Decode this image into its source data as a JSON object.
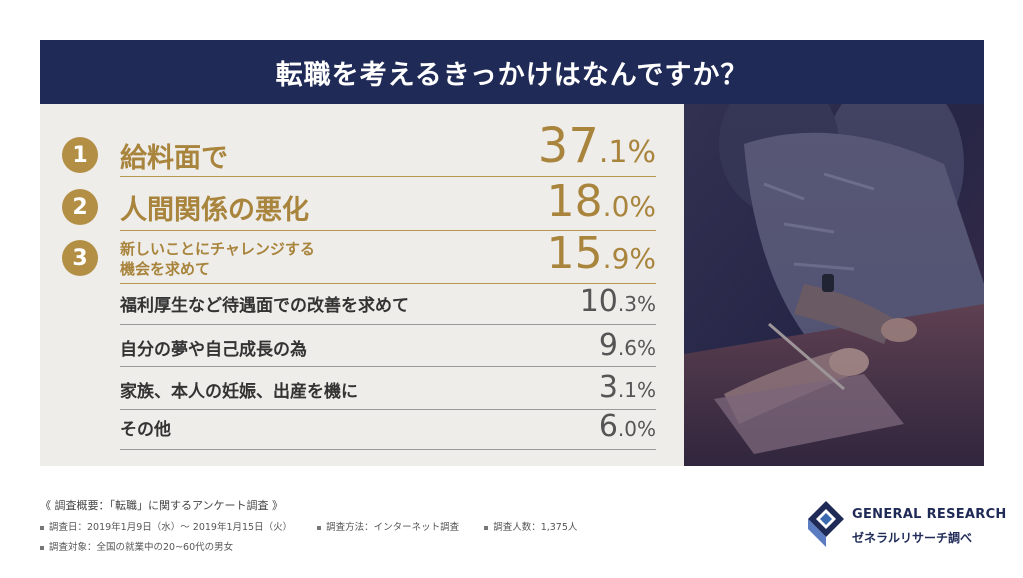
{
  "title": "転職を考えるきっかけはなんですか？",
  "chart_data": {
    "type": "table",
    "title": "転職を考えるきっかけはなんですか？",
    "categories": [
      "給料面で",
      "人間関係の悪化",
      "新しいことにチャレンジする機会を求めて",
      "福利厚生など待遇面での改善を求めて",
      "自分の夢や自己成長の為",
      "家族、本人の妊娠、出産を機に",
      "その他"
    ],
    "values": [
      37.1,
      18.0,
      15.9,
      10.3,
      9.6,
      3.1,
      6.0
    ],
    "unit": "%"
  },
  "rows": [
    {
      "rank": "1",
      "label": "給料面で",
      "int": "37",
      "dec": ".1%"
    },
    {
      "rank": "2",
      "label": "人間関係の悪化",
      "int": "18",
      "dec": ".0%"
    },
    {
      "rank": "3",
      "label_line1": "新しいことにチャレンジする",
      "label_line2": "機会を求めて",
      "int": "15",
      "dec": ".9%"
    },
    {
      "label": "福利厚生など待遇面での改善を求めて",
      "int": "10",
      "dec": ".3%"
    },
    {
      "label": "自分の夢や自己成長の為",
      "int": "9",
      "dec": ".6%"
    },
    {
      "label": "家族、本人の妊娠、出産を機に",
      "int": "3",
      "dec": ".1%"
    },
    {
      "label": "その他",
      "int": "6",
      "dec": ".0%"
    }
  ],
  "footer": {
    "survey_title": "《 調査概要：「転職」に関するアンケート調査 》",
    "period": "調査日：2019年1月9日（水）～ 2019年1月15日（火）",
    "method": "調査方法：インターネット調査",
    "count": "調査人数：1,375人",
    "target": "調査対象：全国の就業中の20~60代の男女"
  },
  "logo": {
    "name": "GENERAL RESEARCH",
    "sub": "ゼネラルリサーチ調べ"
  },
  "colors": {
    "navy": "#1f2a57",
    "gold": "#b38f45",
    "panel": "#efedea"
  }
}
